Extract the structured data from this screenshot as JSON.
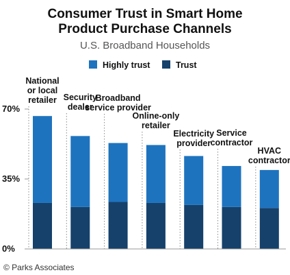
{
  "chart_data": {
    "type": "bar",
    "stacked": true,
    "title": "Consumer Trust in Smart Home Product Purchase Channels",
    "title_lines": [
      "Consumer Trust in Smart Home",
      "Product Purchase Channels"
    ],
    "subtitle": "U.S. Broadband Households",
    "categories": [
      "National or local retailer",
      "Security dealer",
      "Broadband service provider",
      "Online-only retailer",
      "Electricity provider",
      "Service contractor",
      "HVAC contractor"
    ],
    "category_label_lines": [
      [
        "National",
        "or local",
        "retailer"
      ],
      [
        "Security",
        "dealer"
      ],
      [
        "Broadband",
        "service provider"
      ],
      [
        "Online-only",
        "retailer"
      ],
      [
        "Electricity",
        "provider"
      ],
      [
        "Service",
        "contractor"
      ],
      [
        "HVAC",
        "contractor"
      ]
    ],
    "series": [
      {
        "name": "Trust",
        "color": "#15416b",
        "values": [
          23,
          21,
          23.5,
          23,
          22,
          21,
          20.5
        ]
      },
      {
        "name": "Highly trust",
        "color": "#1e73be",
        "values": [
          43.5,
          35.5,
          29.5,
          29,
          24.5,
          20.5,
          19
        ]
      }
    ],
    "legend": [
      {
        "name": "Highly trust",
        "color": "#1e73be"
      },
      {
        "name": "Trust",
        "color": "#15416b"
      }
    ],
    "legend_position": "top",
    "ylim": [
      0,
      70
    ],
    "yticks": [
      0,
      35,
      70
    ],
    "ytick_labels": [
      "0%",
      "35%",
      "70%"
    ],
    "xlabel": "",
    "ylabel": "",
    "grid": false,
    "credit": "© Parks Associates"
  }
}
